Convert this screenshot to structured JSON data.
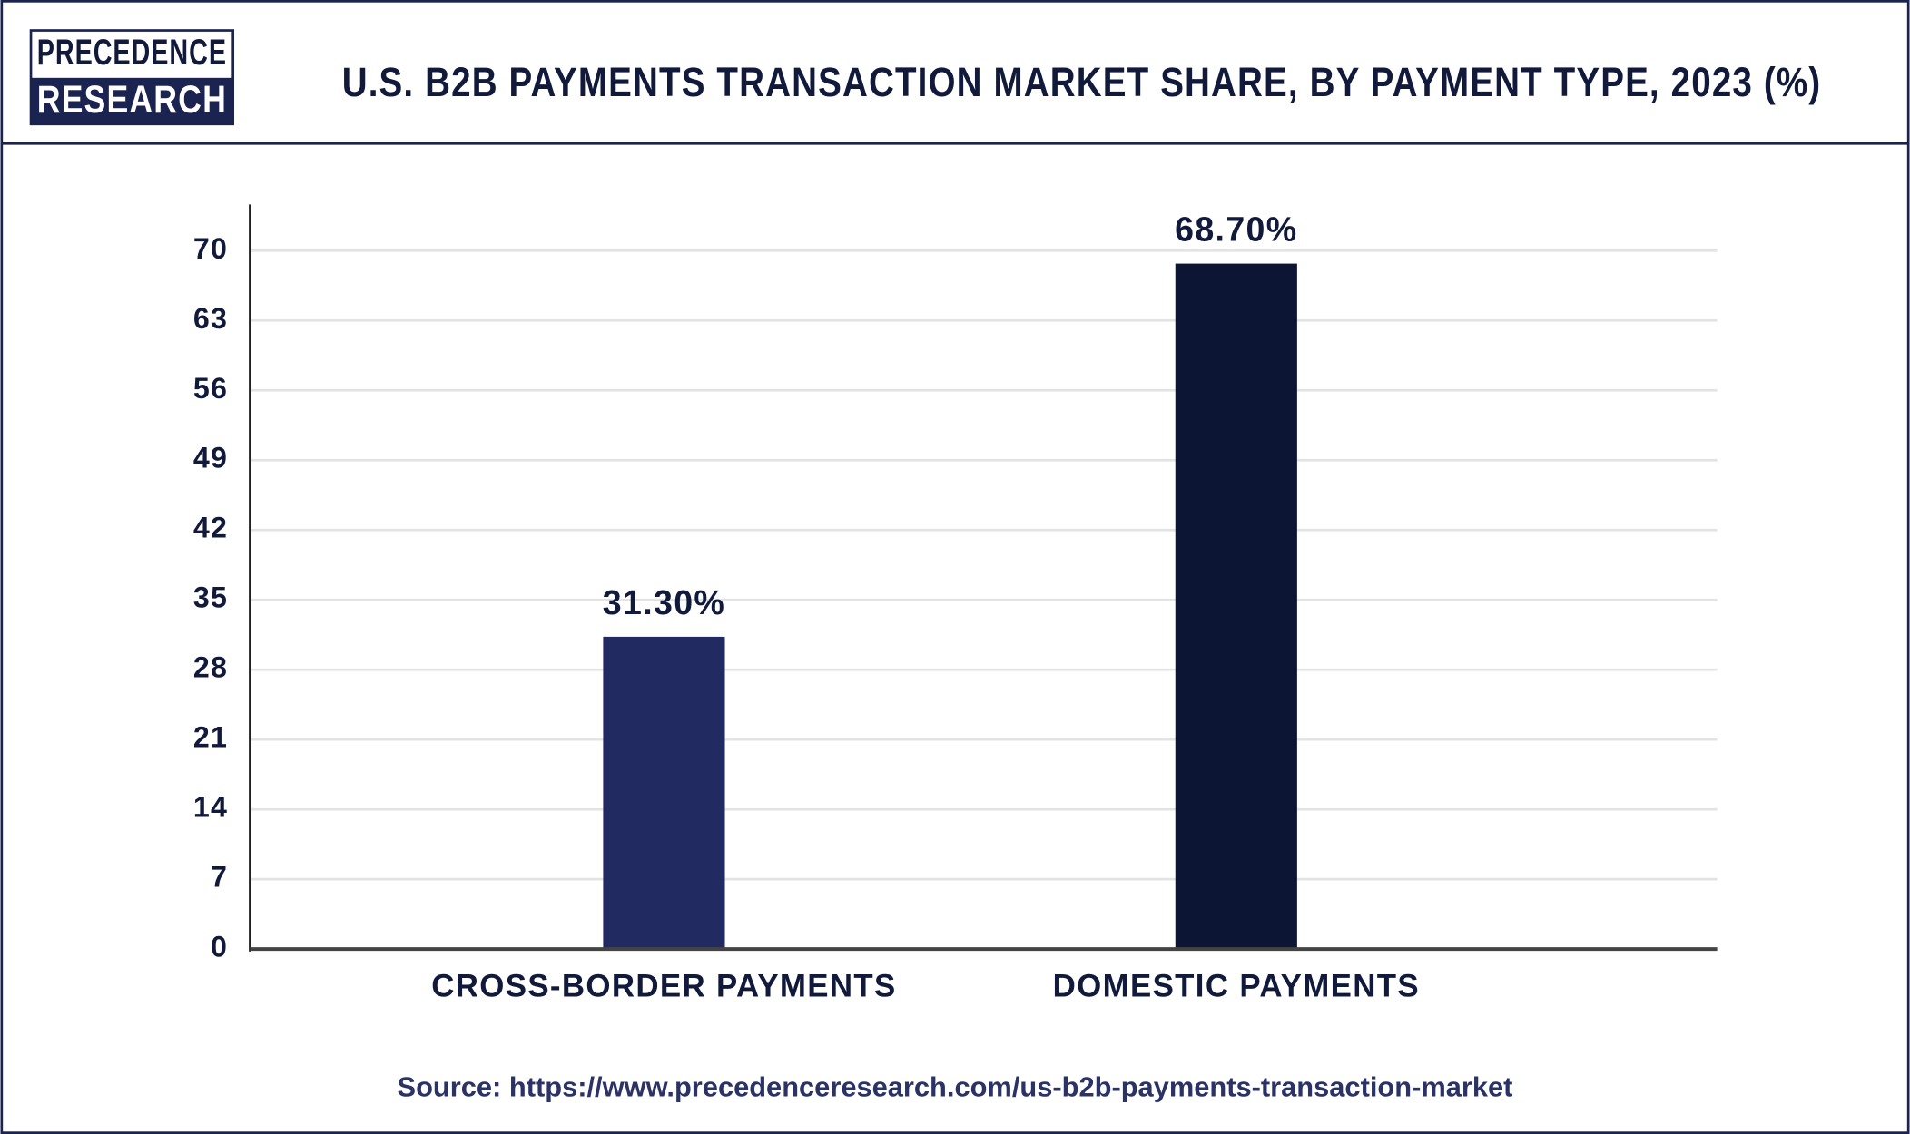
{
  "chart_data": {
    "type": "bar",
    "title": "U.S. B2B PAYMENTS TRANSACTION MARKET SHARE, BY PAYMENT TYPE, 2023 (%)",
    "logo": [
      "PRECEDENCE",
      "RESEARCH"
    ],
    "categories": [
      "CROSS-BORDER PAYMENTS",
      "DOMESTIC PAYMENTS"
    ],
    "values": [
      31.3,
      68.7
    ],
    "value_labels": [
      "31.30%",
      "68.70%"
    ],
    "colors": [
      "#222a62",
      "#0d1535"
    ],
    "ylim": [
      0,
      75
    ],
    "yticks": [
      0,
      7,
      14,
      21,
      28,
      35,
      42,
      49,
      56,
      63,
      70
    ],
    "grid": true,
    "source": "Source: https://www.precedenceresearch.com/us-b2b-payments-transaction-market"
  }
}
